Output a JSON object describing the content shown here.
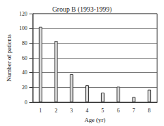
{
  "chart_data": {
    "type": "bar",
    "title": "Group B (1993-1999)",
    "x_label": "Age (yr)",
    "y_label": "Number of patients",
    "categories": [
      "1",
      "2",
      "3",
      "4",
      "5",
      "6",
      "7",
      "8"
    ],
    "values": [
      102,
      83,
      38,
      23,
      13,
      21,
      7,
      17
    ],
    "color": "#dcdcdc",
    "ylim": [
      0,
      120
    ],
    "yticks": [
      0,
      20,
      40,
      60,
      80,
      100,
      120
    ],
    "grid": true
  }
}
